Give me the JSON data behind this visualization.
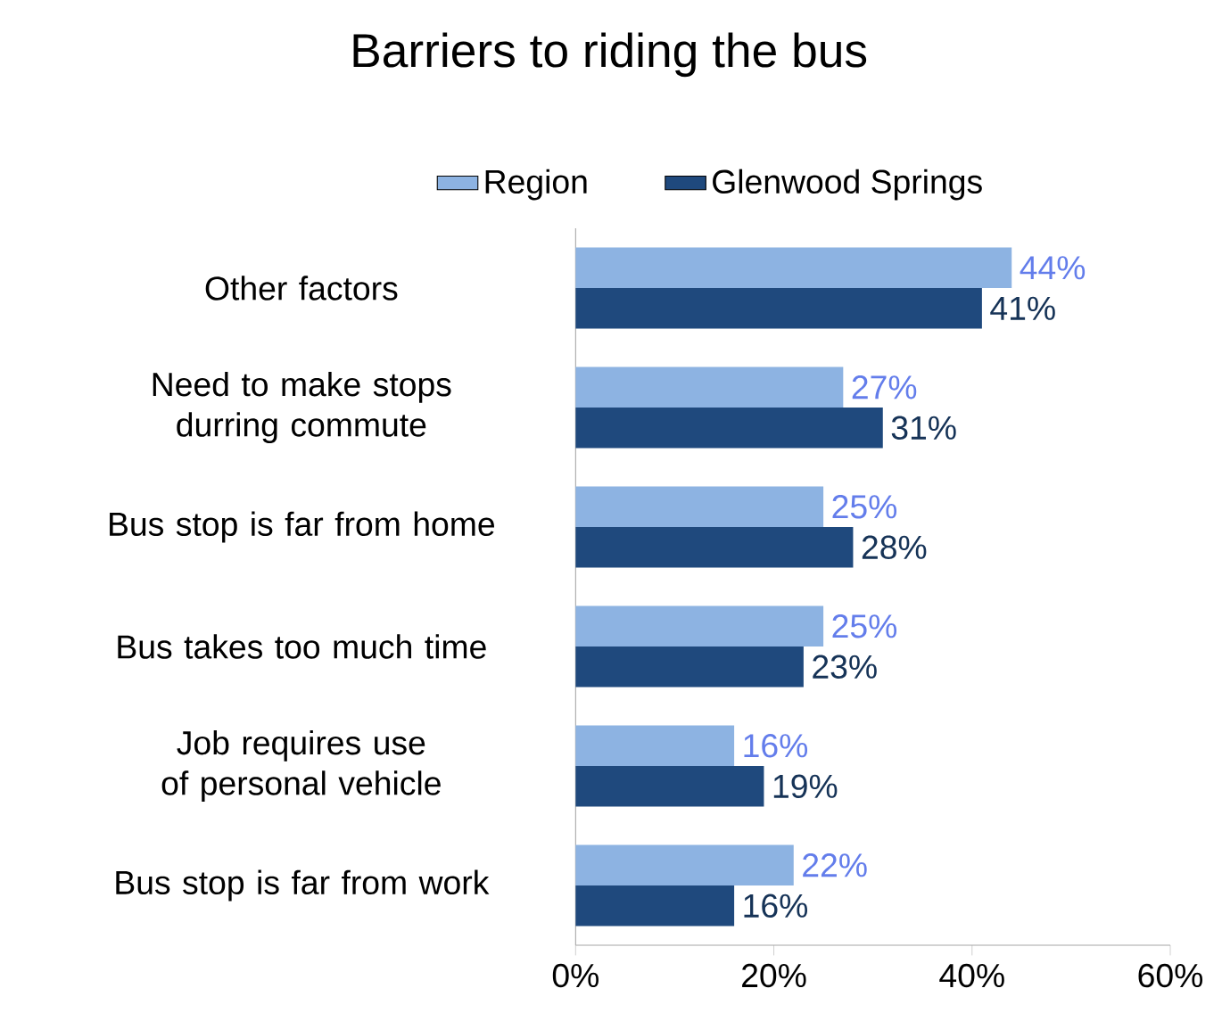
{
  "chart_data": {
    "type": "bar",
    "orientation": "horizontal",
    "title": "Barriers to riding the bus",
    "categories": [
      "Other factors",
      "Need to make stops durring commute",
      "Bus stop is far from home",
      "Bus takes too much time",
      "Job requires use of personal vehicle",
      "Bus stop is far from work"
    ],
    "series": [
      {
        "name": "Region",
        "color": "#8db3e2",
        "values": [
          44,
          27,
          25,
          25,
          16,
          22
        ],
        "value_labels": [
          "44%",
          "27%",
          "25%",
          "25%",
          "16%",
          "22%"
        ]
      },
      {
        "name": "Glenwood Springs",
        "color": "#1f497d",
        "values": [
          41,
          31,
          28,
          23,
          19,
          16
        ],
        "value_labels": [
          "41%",
          "31%",
          "28%",
          "23%",
          "19%",
          "16%"
        ]
      }
    ],
    "xlim": [
      0,
      60
    ],
    "xticks": [
      {
        "value": 0,
        "label": "0%"
      },
      {
        "value": 20,
        "label": "20%"
      },
      {
        "value": 40,
        "label": "40%"
      },
      {
        "value": 60,
        "label": "60%"
      }
    ],
    "legend": "top",
    "grid": false
  }
}
